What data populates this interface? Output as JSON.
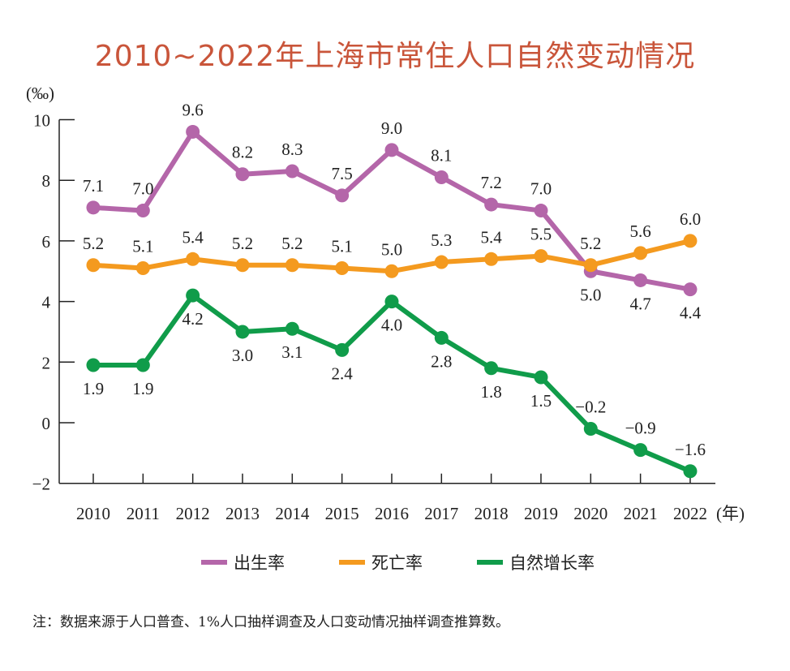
{
  "chart_data": {
    "type": "line",
    "title": "2010~2022年上海市常住人口自然变动情况",
    "ylabel": "(‰)",
    "xlabel_unit": "(年)",
    "x": [
      "2010",
      "2011",
      "2012",
      "2013",
      "2014",
      "2015",
      "2016",
      "2017",
      "2018",
      "2019",
      "2020",
      "2021",
      "2022"
    ],
    "ylim": [
      -2,
      10
    ],
    "yticks": [
      "10",
      "8",
      "6",
      "4",
      "2",
      "0",
      "−2"
    ],
    "ytick_values": [
      10,
      8,
      6,
      4,
      2,
      0,
      -2
    ],
    "grid": false,
    "legend_position": "bottom",
    "series": [
      {
        "name": "出生率",
        "color": "#b466a9",
        "values": [
          7.1,
          7.0,
          9.6,
          8.2,
          8.3,
          7.5,
          9.0,
          8.1,
          7.2,
          7.0,
          5.0,
          4.7,
          4.4
        ],
        "labels": [
          "7.1",
          "7.0",
          "9.6",
          "8.2",
          "8.3",
          "7.5",
          "9.0",
          "8.1",
          "7.2",
          "7.0",
          "5.0",
          "4.7",
          "4.4"
        ]
      },
      {
        "name": "死亡率",
        "color": "#f49a1f",
        "values": [
          5.2,
          5.1,
          5.4,
          5.2,
          5.2,
          5.1,
          5.0,
          5.3,
          5.4,
          5.5,
          5.2,
          5.6,
          6.0
        ],
        "labels": [
          "5.2",
          "5.1",
          "5.4",
          "5.2",
          "5.2",
          "5.1",
          "5.0",
          "5.3",
          "5.4",
          "5.5",
          "5.2",
          "5.6",
          "6.0"
        ]
      },
      {
        "name": "自然增长率",
        "color": "#109c4a",
        "values": [
          1.9,
          1.9,
          4.2,
          3.0,
          3.1,
          2.4,
          4.0,
          2.8,
          1.8,
          1.5,
          -0.2,
          -0.9,
          -1.6
        ],
        "labels": [
          "1.9",
          "1.9",
          "4.2",
          "3.0",
          "3.1",
          "2.4",
          "4.0",
          "2.8",
          "1.8",
          "1.5",
          "−0.2",
          "−0.9",
          "−1.6"
        ]
      }
    ]
  },
  "title_color": "#c9553a",
  "note": "注：数据来源于人口普查、1%人口抽样调查及人口变动情况抽样调查推算数。"
}
